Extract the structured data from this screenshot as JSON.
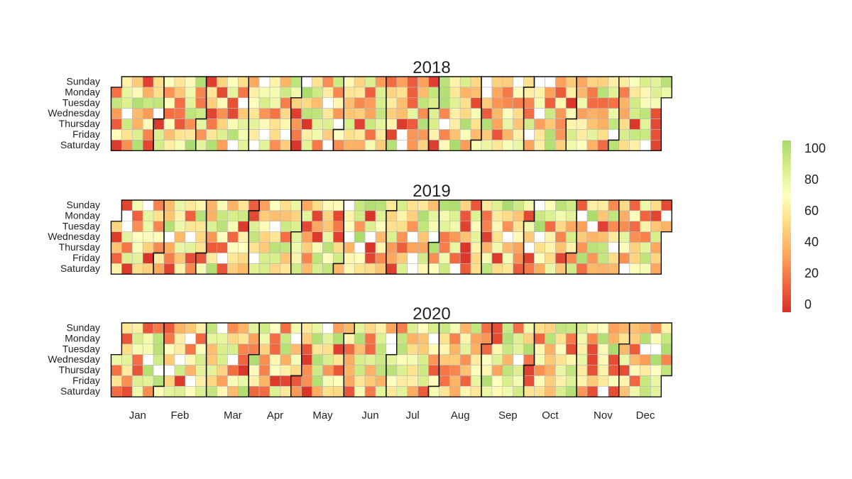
{
  "chart_data": {
    "type": "heatmap",
    "title": "",
    "years": [
      2018,
      2019,
      2020
    ],
    "days": [
      "Sunday",
      "Monday",
      "Tuesday",
      "Wednesday",
      "Thursday",
      "Friday",
      "Saturday"
    ],
    "months": [
      "Jan",
      "Feb",
      "Mar",
      "Apr",
      "May",
      "Jun",
      "Jul",
      "Aug",
      "Sep",
      "Oct",
      "Nov",
      "Dec"
    ],
    "color_scale": {
      "min": 0,
      "max": 100,
      "colors": [
        "#d73027",
        "#f46d43",
        "#fdae61",
        "#fee08b",
        "#ffffbf",
        "#d9ef8b",
        "#a6d96a"
      ],
      "ticks": [
        "0",
        "20",
        "40",
        "60",
        "80",
        "100"
      ]
    },
    "legend_position": "right",
    "value_note": "daily values range 0-100; each year has one cell per calendar day"
  }
}
